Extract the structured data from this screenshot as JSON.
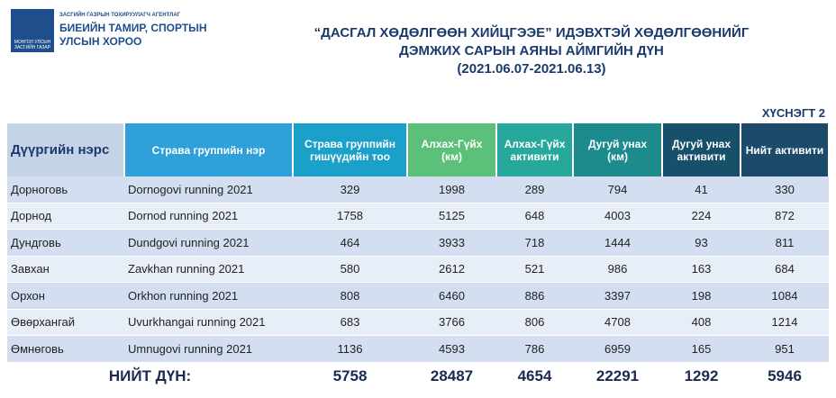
{
  "header": {
    "agency": "ЗАСГИЙН ГАЗРЫН ТОХИРУУЛАГЧ АГЕНТЛАГ",
    "org_line1": "БИЕИЙН ТАМИР, СПОРТЫН",
    "org_line2": "УЛСЫН ХОРОО",
    "emblem": "МОНГОЛ УЛСЫН ЗАСГИЙН ГАЗАР"
  },
  "title": {
    "line1": "“ДАСГАЛ ХӨДӨЛГӨӨН  ХИЙЦГЭЭЕ” ИДЭВХТЭЙ ХӨДӨЛГӨӨНИЙГ",
    "line2": "ДЭМЖИХ САРЫН АЯНЫ АЙМГИЙН ДҮН",
    "dates": "(2021.06.07-2021.06.13)"
  },
  "table_label": "ХҮСНЭГТ 2",
  "table": {
    "columns": [
      "Дүүргийн нэрс",
      "Страва группийн нэр",
      "Страва группийн гишүүдийн тоо",
      "Алхах-Гүйх (км)",
      "Алхах-Гүйх активити",
      "Дугуй унах (км)",
      "Дугуй унах активити",
      "Нийт активити"
    ],
    "rows": [
      [
        "Дорноговь",
        "Dornogovi running 2021",
        329,
        1998,
        289,
        794,
        41,
        330
      ],
      [
        "Дорнод",
        "Dornod running 2021",
        1758,
        5125,
        648,
        4003,
        224,
        872
      ],
      [
        "Дундговь",
        "Dundgovi running 2021",
        464,
        3933,
        718,
        1444,
        93,
        811
      ],
      [
        "Завхан",
        "Zavkhan running 2021",
        580,
        2612,
        521,
        986,
        163,
        684
      ],
      [
        "Орхон",
        "Orkhon running 2021",
        808,
        6460,
        886,
        3397,
        198,
        1084
      ],
      [
        "Өвөрхангай",
        "Uvurkhangai running 2021",
        683,
        3766,
        806,
        4708,
        408,
        1214
      ],
      [
        "Өмнөговь",
        "Umnugovi running 2021",
        1136,
        4593,
        786,
        6959,
        165,
        951
      ]
    ],
    "total": {
      "label": "НИЙТ ДҮН:",
      "values": [
        5758,
        28487,
        4654,
        22291,
        1292,
        5946
      ]
    }
  }
}
